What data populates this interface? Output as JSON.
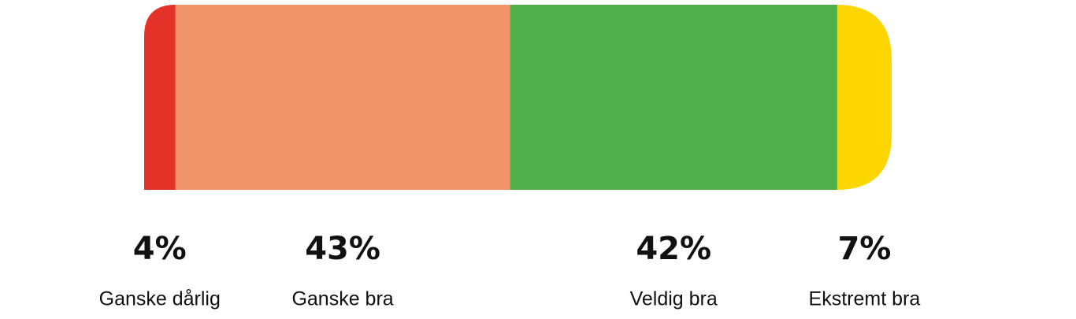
{
  "chart_data": {
    "type": "stacked-bar",
    "categories": [
      "Ganske dårlig",
      "Ganske bra",
      "Veldig bra",
      "Ekstremt bra"
    ],
    "values": [
      4,
      43,
      42,
      7
    ],
    "value_labels": [
      "4%",
      "43%",
      "42%",
      "7%"
    ],
    "colors": [
      "#e53228",
      "#f2956a",
      "#4faf4b",
      "#fdd600"
    ]
  }
}
